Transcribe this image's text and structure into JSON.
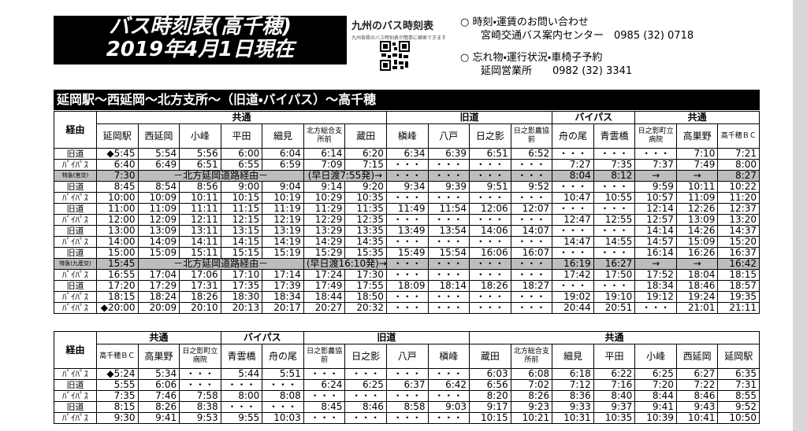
{
  "header": {
    "title": "バス時刻表(高千穂)",
    "date": "2019年4月1日現在",
    "logo": "九州のバス時刻表",
    "logo_sub": "九州各県のバス時刻表が簡単に検索できます"
  },
  "contact": [
    {
      "label": "○ 時刻・運賃のお問い合わせ",
      "detail": "宮崎交通バス案内センター　0985 (32) 0718"
    },
    {
      "label": "○ 忘れ物・運行状況・車椅子予約",
      "detail": "延岡営業所　　0982 (32) 3341"
    }
  ],
  "tables": [
    {
      "title": "延岡駅～西延岡～北方支所～（旧道・バイパス）～高千穂",
      "route_header": "経由",
      "groups": [
        {
          "name": "共通",
          "stops": [
            "延岡駅",
            "西延岡",
            "小峰",
            "平田",
            "細見",
            "北方総合支所前",
            "蔵田"
          ]
        },
        {
          "name": "旧道",
          "stops": [
            "槇峰",
            "八戸",
            "日之影",
            "日之影農協前"
          ]
        },
        {
          "name": "バイパス",
          "stops": [
            "舟の尾",
            "青雲橋"
          ]
        },
        {
          "name": "共通",
          "stops": [
            "日之影町立病院",
            "高巣野",
            "高千穂ＢＣ"
          ]
        }
      ],
      "rows": [
        {
          "route": "旧道",
          "times": [
            "◆5:45",
            "5:54",
            "5:56",
            "6:00",
            "6:04",
            "6:14",
            "6:20",
            "6:34",
            "6:39",
            "6:51",
            "6:52",
            "・・・",
            "・・・",
            "・・・",
            "7:10",
            "7:21"
          ]
        },
        {
          "route": "ﾊﾞｲﾊﾟｽ",
          "times": [
            "6:40",
            "6:49",
            "6:51",
            "6:55",
            "6:59",
            "7:09",
            "7:15",
            "・・・",
            "・・・",
            "・・・",
            "・・・",
            "7:27",
            "7:35",
            "7:37",
            "7:49",
            "8:00"
          ]
        },
        {
          "route": "特急(宮交)",
          "times": [
            "7:30"
          ],
          "via": "－北方延岡道路経由－",
          "note": "(早日渡7:55発)→",
          "after": [
            "・・・",
            "・・・",
            "・・・",
            "・・・",
            "8:04",
            "8:12",
            "→",
            "→",
            "8:27"
          ]
        },
        {
          "route": "旧道",
          "times": [
            "8:45",
            "8:54",
            "8:56",
            "9:00",
            "9:04",
            "9:14",
            "9:20",
            "9:34",
            "9:39",
            "9:51",
            "9:52",
            "・・・",
            "・・・",
            "9:59",
            "10:11",
            "10:22"
          ]
        },
        {
          "route": "ﾊﾞｲﾊﾟｽ",
          "times": [
            "10:00",
            "10:09",
            "10:11",
            "10:15",
            "10:19",
            "10:29",
            "10:35",
            "・・・",
            "・・・",
            "・・・",
            "・・・",
            "10:47",
            "10:55",
            "10:57",
            "11:09",
            "11:20"
          ]
        },
        {
          "route": "旧道",
          "times": [
            "11:00",
            "11:09",
            "11:11",
            "11:15",
            "11:19",
            "11:29",
            "11:35",
            "11:49",
            "11:54",
            "12:06",
            "12:07",
            "・・・",
            "・・・",
            "12:14",
            "12:26",
            "12:37"
          ]
        },
        {
          "route": "ﾊﾞｲﾊﾟｽ",
          "times": [
            "12:00",
            "12:09",
            "12:11",
            "12:15",
            "12:19",
            "12:29",
            "12:35",
            "・・・",
            "・・・",
            "・・・",
            "・・・",
            "12:47",
            "12:55",
            "12:57",
            "13:09",
            "13:20"
          ]
        },
        {
          "route": "旧道",
          "times": [
            "13:00",
            "13:09",
            "13:11",
            "13:15",
            "13:19",
            "13:29",
            "13:35",
            "13:49",
            "13:54",
            "14:06",
            "14:07",
            "・・・",
            "・・・",
            "14:14",
            "14:26",
            "14:37"
          ]
        },
        {
          "route": "ﾊﾞｲﾊﾟｽ",
          "times": [
            "14:00",
            "14:09",
            "14:11",
            "14:15",
            "14:19",
            "14:29",
            "14:35",
            "・・・",
            "・・・",
            "・・・",
            "・・・",
            "14:47",
            "14:55",
            "14:57",
            "15:09",
            "15:20"
          ]
        },
        {
          "route": "旧道",
          "times": [
            "15:00",
            "15:09",
            "15:11",
            "15:15",
            "15:19",
            "15:29",
            "15:35",
            "15:49",
            "15:54",
            "16:06",
            "16:07",
            "・・・",
            "・・・",
            "16:14",
            "16:26",
            "16:37"
          ]
        },
        {
          "route": "特急(九産交)",
          "times": [
            "15:45"
          ],
          "via": "－北方延岡道路経由－",
          "note": "(早日渡16:10発)→",
          "after": [
            "・・・",
            "・・・",
            "・・・",
            "・・・",
            "16:19",
            "16:27",
            "→",
            "→",
            "16:42"
          ]
        },
        {
          "route": "ﾊﾞｲﾊﾟｽ",
          "times": [
            "16:55",
            "17:04",
            "17:06",
            "17:10",
            "17:14",
            "17:24",
            "17:30",
            "・・・",
            "・・・",
            "・・・",
            "・・・",
            "17:42",
            "17:50",
            "17:52",
            "18:04",
            "18:15"
          ]
        },
        {
          "route": "旧道",
          "times": [
            "17:20",
            "17:29",
            "17:31",
            "17:35",
            "17:39",
            "17:49",
            "17:55",
            "18:09",
            "18:14",
            "18:26",
            "18:27",
            "・・・",
            "・・・",
            "18:34",
            "18:46",
            "18:57"
          ]
        },
        {
          "route": "ﾊﾞｲﾊﾟｽ",
          "times": [
            "18:15",
            "18:24",
            "18:26",
            "18:30",
            "18:34",
            "18:44",
            "18:50",
            "・・・",
            "・・・",
            "・・・",
            "・・・",
            "19:02",
            "19:10",
            "19:12",
            "19:24",
            "19:35"
          ]
        },
        {
          "route": "ﾊﾞｲﾊﾟｽ",
          "times": [
            "◆20:00",
            "20:09",
            "20:10",
            "20:13",
            "20:17",
            "20:27",
            "20:32",
            "・・・",
            "・・・",
            "・・・",
            "・・・",
            "20:44",
            "20:51",
            "・・・",
            "21:01",
            "21:11"
          ]
        }
      ]
    },
    {
      "route_header": "経由",
      "groups": [
        {
          "name": "共通",
          "stops": [
            "高千穂ＢＣ",
            "高巣野",
            "日之影町立病院"
          ]
        },
        {
          "name": "バイパス",
          "stops": [
            "青雲橋",
            "舟の尾"
          ]
        },
        {
          "name": "旧道",
          "stops": [
            "日之影農協前",
            "日之影",
            "八戸",
            "槇峰"
          ]
        },
        {
          "name": "共通",
          "stops": [
            "蔵田",
            "北方総合支所前",
            "細見",
            "平田",
            "小峰",
            "西延岡",
            "延岡駅"
          ]
        }
      ],
      "rows": [
        {
          "route": "ﾊﾞｲﾊﾟｽ",
          "times": [
            "◆5:24",
            "5:34",
            "・・・",
            "5:44",
            "5:51",
            "・・・",
            "・・・",
            "・・・",
            "・・・",
            "6:03",
            "6:08",
            "6:18",
            "6:22",
            "6:25",
            "6:27",
            "6:35"
          ]
        },
        {
          "route": "旧道",
          "times": [
            "5:55",
            "6:06",
            "・・・",
            "・・・",
            "・・・",
            "6:24",
            "6:25",
            "6:37",
            "6:42",
            "6:56",
            "7:02",
            "7:12",
            "7:16",
            "7:20",
            "7:22",
            "7:31"
          ]
        },
        {
          "route": "ﾊﾞｲﾊﾟｽ",
          "times": [
            "7:35",
            "7:46",
            "7:58",
            "8:00",
            "8:08",
            "・・・",
            "・・・",
            "・・・",
            "・・・",
            "8:20",
            "8:26",
            "8:36",
            "8:40",
            "8:44",
            "8:46",
            "8:55"
          ]
        },
        {
          "route": "旧道",
          "times": [
            "8:15",
            "8:26",
            "8:38",
            "・・・",
            "・・・",
            "8:45",
            "8:46",
            "8:58",
            "9:03",
            "9:17",
            "9:23",
            "9:33",
            "9:37",
            "9:41",
            "9:43",
            "9:52"
          ]
        },
        {
          "route": "ﾊﾞｲﾊﾟｽ",
          "times": [
            "9:30",
            "9:41",
            "9:53",
            "9:55",
            "10:03",
            "・・・",
            "・・・",
            "・・・",
            "・・・",
            "10:15",
            "10:21",
            "10:31",
            "10:35",
            "10:39",
            "10:41",
            "10:50"
          ]
        }
      ]
    }
  ]
}
